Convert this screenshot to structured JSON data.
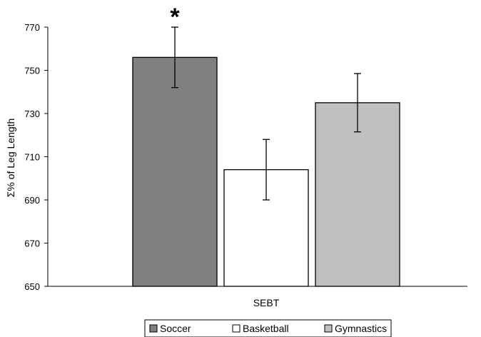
{
  "chart_data": {
    "type": "bar",
    "title": "",
    "xlabel": "SEBT",
    "ylabel": "Σ% of Leg Length",
    "ylim": [
      650,
      770
    ],
    "yticks": [
      650,
      670,
      690,
      710,
      730,
      750,
      770
    ],
    "grid": false,
    "legend_position": "bottom",
    "categories": [
      "SEBT"
    ],
    "series": [
      {
        "name": "Soccer",
        "values": [
          756
        ],
        "error": [
          14
        ],
        "color": "#808080",
        "annotation": "*"
      },
      {
        "name": "Basketball",
        "values": [
          704
        ],
        "error": [
          14
        ],
        "color": "#ffffff",
        "annotation": ""
      },
      {
        "name": "Gymnastics",
        "values": [
          735
        ],
        "error": [
          13.5
        ],
        "color": "#c0c0c0",
        "annotation": ""
      }
    ]
  }
}
